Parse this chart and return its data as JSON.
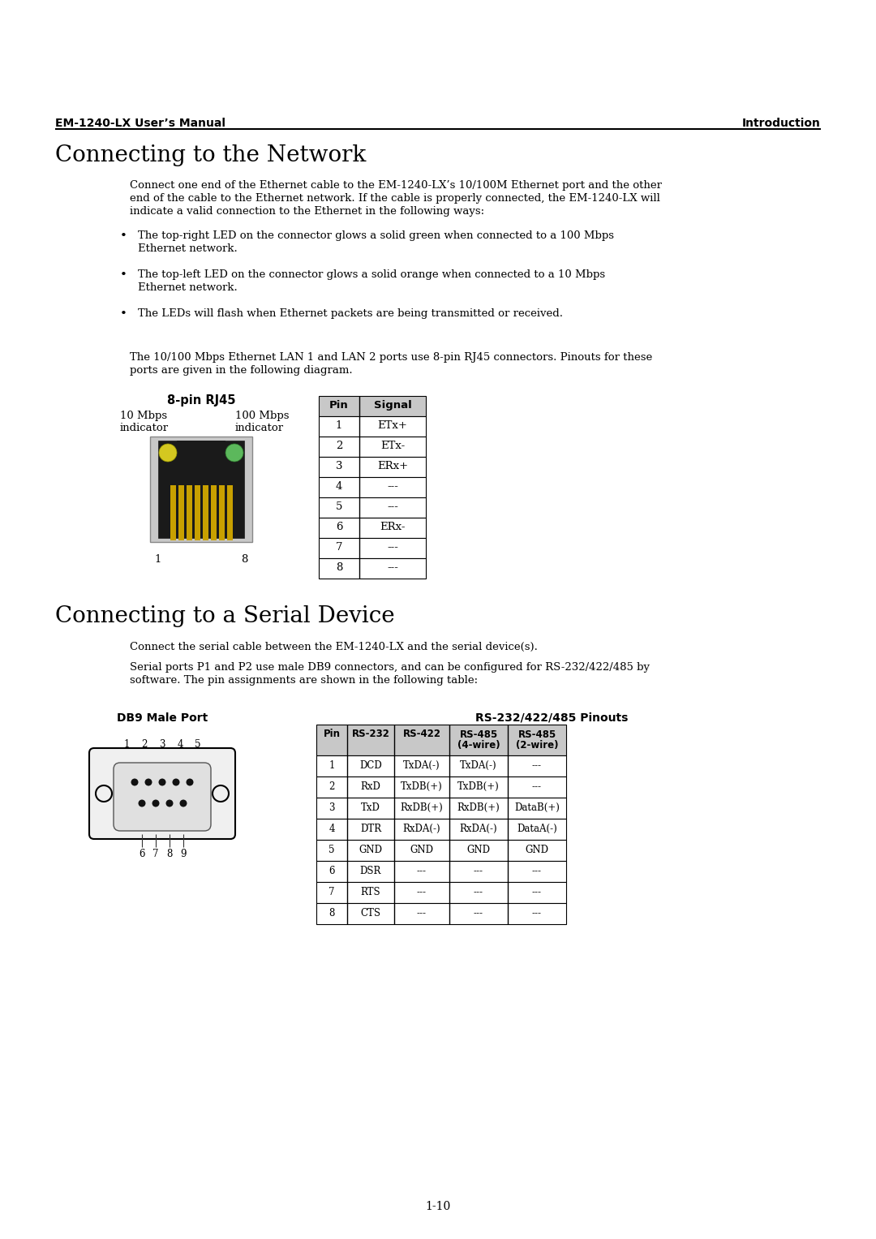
{
  "page_bg": "#ffffff",
  "header_left": "EM-1240-LX User’s Manual",
  "header_right": "Introduction",
  "section1_title": "Connecting to the Network",
  "section1_para1": "Connect one end of the Ethernet cable to the EM-1240-LX’s 10/100M Ethernet port and the other\nend of the cable to the Ethernet network. If the cable is properly connected, the EM-1240-LX will\nindicate a valid connection to the Ethernet in the following ways:",
  "section1_bullets": [
    "The top-right LED on the connector glows a solid green when connected to a 100 Mbps\nEthernet network.",
    "The top-left LED on the connector glows a solid orange when connected to a 10 Mbps\nEthernet network.",
    "The LEDs will flash when Ethernet packets are being transmitted or received."
  ],
  "section1_para2": "The 10/100 Mbps Ethernet LAN 1 and LAN 2 ports use 8-pin RJ45 connectors. Pinouts for these\nports are given in the following diagram.",
  "rj45_title": "8-pin RJ45",
  "rj45_label_left_line1": "10 Mbps",
  "rj45_label_left_line2": "indicator",
  "rj45_label_right_line1": "100 Mbps",
  "rj45_label_right_line2": "indicator",
  "rj45_table_headers": [
    "Pin",
    "Signal"
  ],
  "rj45_table_data": [
    [
      "1",
      "ETx+"
    ],
    [
      "2",
      "ETx-"
    ],
    [
      "3",
      "ERx+"
    ],
    [
      "4",
      "---"
    ],
    [
      "5",
      "---"
    ],
    [
      "6",
      "ERx-"
    ],
    [
      "7",
      "---"
    ],
    [
      "8",
      "---"
    ]
  ],
  "section2_title": "Connecting to a Serial Device",
  "section2_para1": "Connect the serial cable between the EM-1240-LX and the serial device(s).",
  "section2_para2": "Serial ports P1 and P2 use male DB9 connectors, and can be configured for RS-232/422/485 by\nsoftware. The pin assignments are shown in the following table:",
  "db9_title_left": "DB9 Male Port",
  "db9_title_right": "RS-232/422/485 Pinouts",
  "db9_table_headers": [
    "Pin",
    "RS-232",
    "RS-422",
    "RS-485\n(4-wire)",
    "RS-485\n(2-wire)"
  ],
  "db9_table_data": [
    [
      "1",
      "DCD",
      "TxDA(-)",
      "TxDA(-)",
      "---"
    ],
    [
      "2",
      "RxD",
      "TxDB(+)",
      "TxDB(+)",
      "---"
    ],
    [
      "3",
      "TxD",
      "RxDB(+)",
      "RxDB(+)",
      "DataB(+)"
    ],
    [
      "4",
      "DTR",
      "RxDA(-)",
      "RxDA(-)",
      "DataA(-)"
    ],
    [
      "5",
      "GND",
      "GND",
      "GND",
      "GND"
    ],
    [
      "6",
      "DSR",
      "---",
      "---",
      "---"
    ],
    [
      "7",
      "RTS",
      "---",
      "---",
      "---"
    ],
    [
      "8",
      "CTS",
      "---",
      "---",
      "---"
    ]
  ],
  "footer": "1-10",
  "table_header_bg": "#c8c8c8",
  "table_bg": "#ffffff",
  "table_border": "#000000",
  "led_yellow": "#d4c820",
  "led_green": "#5cb85c",
  "rj45_body_color": "#1a1a1a",
  "rj45_shell_color": "#c8c8c8",
  "rj45_pin_color": "#c8a000",
  "db9_body_color": "#f0f0f0"
}
